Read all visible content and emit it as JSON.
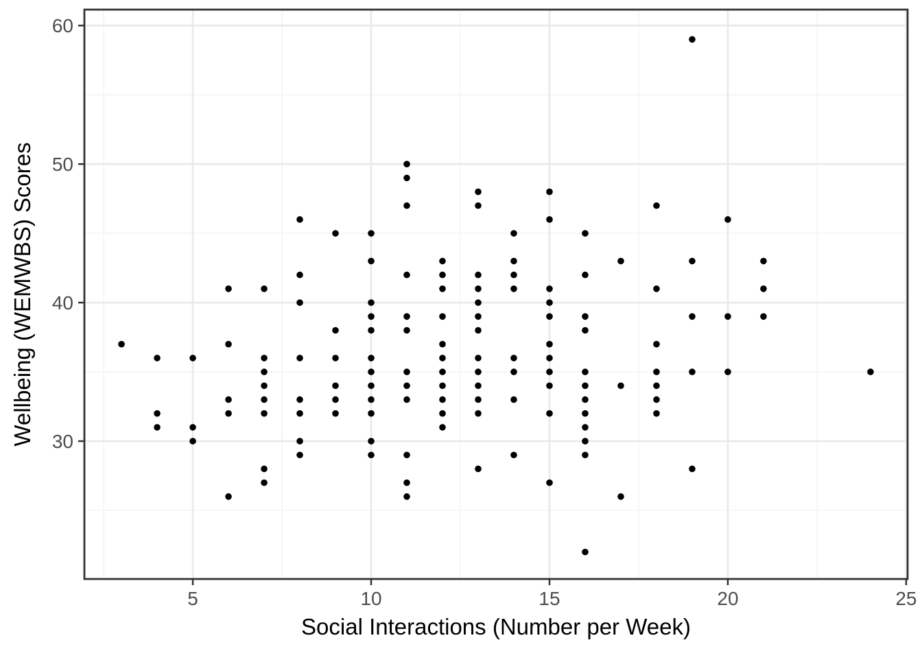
{
  "figure": {
    "background": "#ffffff",
    "panel_bg": "#ffffff",
    "panel_border_color": "#333333",
    "grid_major_color": "#e9e9e9",
    "grid_minor_color": "#f4f4f4",
    "tick_color": "#333333",
    "tick_label_color": "#4d4d4d",
    "point_color": "#000000"
  },
  "chart_data": {
    "type": "scatter",
    "title": "",
    "xlabel": "Social Interactions (Number per Week)",
    "ylabel": "Wellbeing (WEMWBS) Scores",
    "x_ticks": [
      5,
      10,
      15,
      20,
      25
    ],
    "x_minor_ticks": [
      2.5,
      7.5,
      12.5,
      17.5,
      22.5
    ],
    "y_ticks": [
      30,
      40,
      50,
      60
    ],
    "y_minor_ticks": [
      25,
      35,
      45,
      55
    ],
    "xlim": [
      1.96,
      25.04
    ],
    "ylim": [
      20.05,
      61.15
    ],
    "grid": true,
    "legend": false,
    "marker": {
      "shape": "circle",
      "color": "#000000",
      "radius_px": 4.8
    },
    "points": [
      [
        3,
        37
      ],
      [
        4,
        36
      ],
      [
        4,
        32
      ],
      [
        4,
        31
      ],
      [
        5,
        36
      ],
      [
        5,
        31
      ],
      [
        5,
        30
      ],
      [
        6,
        41
      ],
      [
        6,
        37
      ],
      [
        6,
        33
      ],
      [
        6,
        32
      ],
      [
        6,
        26
      ],
      [
        7,
        41
      ],
      [
        7,
        36
      ],
      [
        7,
        35
      ],
      [
        7,
        34
      ],
      [
        7,
        33
      ],
      [
        7,
        32
      ],
      [
        7,
        28
      ],
      [
        7,
        27
      ],
      [
        8,
        46
      ],
      [
        8,
        42
      ],
      [
        8,
        40
      ],
      [
        8,
        36
      ],
      [
        8,
        33
      ],
      [
        8,
        32
      ],
      [
        8,
        30
      ],
      [
        8,
        29
      ],
      [
        9,
        45
      ],
      [
        9,
        38
      ],
      [
        9,
        36
      ],
      [
        9,
        34
      ],
      [
        9,
        33
      ],
      [
        9,
        32
      ],
      [
        10,
        45
      ],
      [
        10,
        43
      ],
      [
        10,
        40
      ],
      [
        10,
        39
      ],
      [
        10,
        38
      ],
      [
        10,
        36
      ],
      [
        10,
        35
      ],
      [
        10,
        34
      ],
      [
        10,
        33
      ],
      [
        10,
        32
      ],
      [
        10,
        30
      ],
      [
        10,
        29
      ],
      [
        11,
        50
      ],
      [
        11,
        49
      ],
      [
        11,
        47
      ],
      [
        11,
        42
      ],
      [
        11,
        39
      ],
      [
        11,
        38
      ],
      [
        11,
        35
      ],
      [
        11,
        34
      ],
      [
        11,
        33
      ],
      [
        11,
        29
      ],
      [
        11,
        27
      ],
      [
        11,
        26
      ],
      [
        12,
        43
      ],
      [
        12,
        42
      ],
      [
        12,
        41
      ],
      [
        12,
        39
      ],
      [
        12,
        37
      ],
      [
        12,
        36
      ],
      [
        12,
        35
      ],
      [
        12,
        34
      ],
      [
        12,
        33
      ],
      [
        12,
        32
      ],
      [
        12,
        31
      ],
      [
        13,
        48
      ],
      [
        13,
        47
      ],
      [
        13,
        42
      ],
      [
        13,
        41
      ],
      [
        13,
        40
      ],
      [
        13,
        39
      ],
      [
        13,
        38
      ],
      [
        13,
        36
      ],
      [
        13,
        35
      ],
      [
        13,
        34
      ],
      [
        13,
        33
      ],
      [
        13,
        32
      ],
      [
        13,
        28
      ],
      [
        14,
        45
      ],
      [
        14,
        43
      ],
      [
        14,
        42
      ],
      [
        14,
        41
      ],
      [
        14,
        36
      ],
      [
        14,
        35
      ],
      [
        14,
        33
      ],
      [
        14,
        29
      ],
      [
        15,
        48
      ],
      [
        15,
        46
      ],
      [
        15,
        41
      ],
      [
        15,
        40
      ],
      [
        15,
        39
      ],
      [
        15,
        37
      ],
      [
        15,
        36
      ],
      [
        15,
        35
      ],
      [
        15,
        34
      ],
      [
        15,
        32
      ],
      [
        15,
        27
      ],
      [
        16,
        45
      ],
      [
        16,
        42
      ],
      [
        16,
        39
      ],
      [
        16,
        38
      ],
      [
        16,
        35
      ],
      [
        16,
        34
      ],
      [
        16,
        33
      ],
      [
        16,
        32
      ],
      [
        16,
        31
      ],
      [
        16,
        30
      ],
      [
        16,
        29
      ],
      [
        16,
        22
      ],
      [
        17,
        43
      ],
      [
        17,
        34
      ],
      [
        17,
        26
      ],
      [
        18,
        47
      ],
      [
        18,
        41
      ],
      [
        18,
        37
      ],
      [
        18,
        35
      ],
      [
        18,
        34
      ],
      [
        18,
        33
      ],
      [
        18,
        32
      ],
      [
        19,
        59
      ],
      [
        19,
        43
      ],
      [
        19,
        39
      ],
      [
        19,
        35
      ],
      [
        19,
        28
      ],
      [
        20,
        46
      ],
      [
        20,
        39
      ],
      [
        20,
        35
      ],
      [
        21,
        43
      ],
      [
        21,
        41
      ],
      [
        21,
        39
      ],
      [
        24,
        35
      ]
    ]
  }
}
